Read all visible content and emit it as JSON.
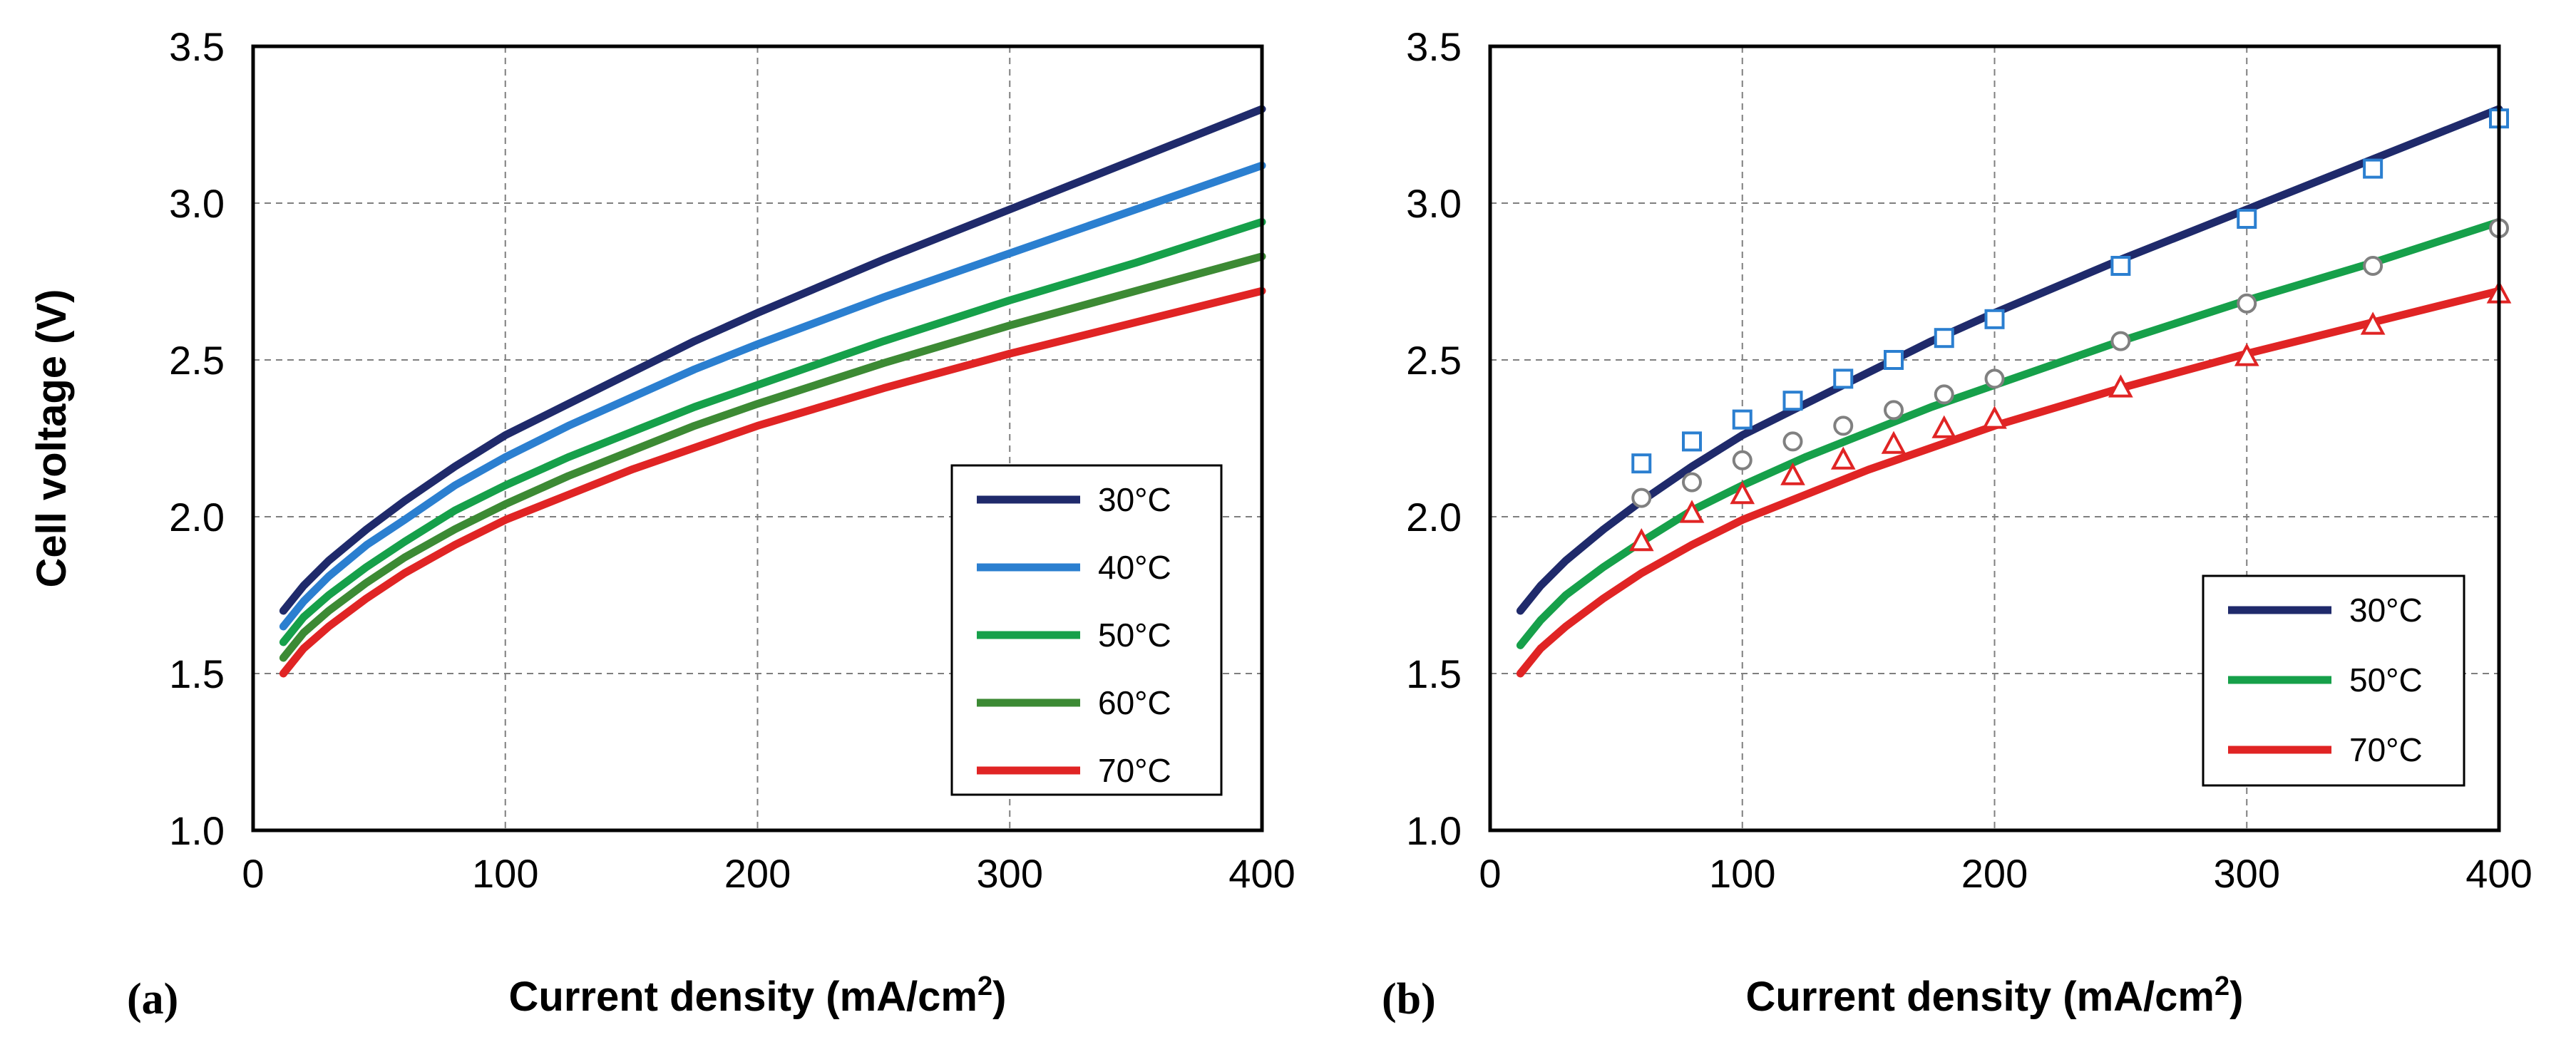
{
  "chart_data": [
    {
      "panel_label": "(a)",
      "type": "line",
      "xlabel": "Current density (mA/cm",
      "xlabel_sup": "2",
      "xlabel_tail": ")",
      "ylabel": "Cell voltage (V)",
      "xlim": [
        0,
        400
      ],
      "ylim": [
        1.0,
        3.5
      ],
      "xticks": [
        "0",
        "100",
        "200",
        "300",
        "400"
      ],
      "yticks": [
        "1.0",
        "1.5",
        "2.0",
        "2.5",
        "3.0",
        "3.5"
      ],
      "grid": true,
      "legend_position": "bottom-right",
      "series": [
        {
          "name": "30°C",
          "color": "#1f2a6b",
          "x": [
            12,
            20,
            30,
            45,
            60,
            80,
            100,
            125,
            150,
            175,
            200,
            250,
            300,
            350,
            400
          ],
          "y": [
            1.7,
            1.78,
            1.86,
            1.96,
            2.05,
            2.16,
            2.26,
            2.36,
            2.46,
            2.56,
            2.65,
            2.82,
            2.98,
            3.14,
            3.3
          ]
        },
        {
          "name": "40°C",
          "color": "#2b7fd0",
          "x": [
            12,
            20,
            30,
            45,
            60,
            80,
            100,
            125,
            150,
            175,
            200,
            250,
            300,
            350,
            400
          ],
          "y": [
            1.65,
            1.73,
            1.81,
            1.91,
            1.99,
            2.1,
            2.19,
            2.29,
            2.38,
            2.47,
            2.55,
            2.7,
            2.84,
            2.98,
            3.12
          ]
        },
        {
          "name": "50°C",
          "color": "#16a04a",
          "x": [
            12,
            20,
            30,
            45,
            60,
            80,
            100,
            125,
            150,
            175,
            200,
            250,
            300,
            350,
            400
          ],
          "y": [
            1.6,
            1.68,
            1.75,
            1.84,
            1.92,
            2.02,
            2.1,
            2.19,
            2.27,
            2.35,
            2.42,
            2.56,
            2.69,
            2.81,
            2.94
          ]
        },
        {
          "name": "60°C",
          "color": "#3c8a34",
          "x": [
            12,
            20,
            30,
            45,
            60,
            80,
            100,
            125,
            150,
            175,
            200,
            250,
            300,
            350,
            400
          ],
          "y": [
            1.55,
            1.63,
            1.7,
            1.79,
            1.87,
            1.96,
            2.04,
            2.13,
            2.21,
            2.29,
            2.36,
            2.49,
            2.61,
            2.72,
            2.83
          ]
        },
        {
          "name": "70°C",
          "color": "#e02424",
          "x": [
            12,
            20,
            30,
            45,
            60,
            80,
            100,
            125,
            150,
            175,
            200,
            250,
            300,
            350,
            400
          ],
          "y": [
            1.5,
            1.58,
            1.65,
            1.74,
            1.82,
            1.91,
            1.99,
            2.07,
            2.15,
            2.22,
            2.29,
            2.41,
            2.52,
            2.62,
            2.72
          ]
        }
      ]
    },
    {
      "panel_label": "(b)",
      "type": "line",
      "xlabel": "Current density (mA/cm",
      "xlabel_sup": "2",
      "xlabel_tail": ")",
      "ylabel": "",
      "xlim": [
        0,
        400
      ],
      "ylim": [
        1.0,
        3.5
      ],
      "xticks": [
        "0",
        "100",
        "200",
        "300",
        "400"
      ],
      "yticks": [
        "1.0",
        "1.5",
        "2.0",
        "2.5",
        "3.0",
        "3.5"
      ],
      "grid": true,
      "legend_position": "bottom-right",
      "series": [
        {
          "name": "30°C",
          "color": "#1f2a6b",
          "x": [
            12,
            20,
            30,
            45,
            60,
            80,
            100,
            125,
            150,
            175,
            200,
            250,
            300,
            350,
            400
          ],
          "y": [
            1.7,
            1.78,
            1.86,
            1.96,
            2.05,
            2.16,
            2.26,
            2.36,
            2.46,
            2.56,
            2.65,
            2.82,
            2.98,
            3.14,
            3.3
          ]
        },
        {
          "name": "50°C",
          "color": "#16a04a",
          "x": [
            12,
            20,
            30,
            45,
            60,
            80,
            100,
            125,
            150,
            175,
            200,
            250,
            300,
            350,
            400
          ],
          "y": [
            1.59,
            1.67,
            1.75,
            1.84,
            1.92,
            2.02,
            2.1,
            2.19,
            2.27,
            2.35,
            2.42,
            2.56,
            2.69,
            2.81,
            2.94
          ]
        },
        {
          "name": "70°C",
          "color": "#e02424",
          "x": [
            12,
            20,
            30,
            45,
            60,
            80,
            100,
            125,
            150,
            175,
            200,
            250,
            300,
            350,
            400
          ],
          "y": [
            1.5,
            1.58,
            1.65,
            1.74,
            1.82,
            1.91,
            1.99,
            2.07,
            2.15,
            2.22,
            2.29,
            2.41,
            2.52,
            2.62,
            2.72
          ]
        }
      ],
      "markers": [
        {
          "shape": "square",
          "color": "#2b7fd0",
          "x": [
            60,
            80,
            100,
            120,
            140,
            160,
            180,
            200,
            250,
            300,
            350,
            400
          ],
          "y": [
            2.17,
            2.24,
            2.31,
            2.37,
            2.44,
            2.5,
            2.57,
            2.63,
            2.8,
            2.95,
            3.11,
            3.27
          ]
        },
        {
          "shape": "circle",
          "color": "#808080",
          "x": [
            60,
            80,
            100,
            120,
            140,
            160,
            180,
            200,
            250,
            300,
            350,
            400
          ],
          "y": [
            2.06,
            2.11,
            2.18,
            2.24,
            2.29,
            2.34,
            2.39,
            2.44,
            2.56,
            2.68,
            2.8,
            2.92
          ]
        },
        {
          "shape": "triangle",
          "color": "#e02424",
          "x": [
            60,
            80,
            100,
            120,
            140,
            160,
            180,
            200,
            250,
            300,
            350,
            400
          ],
          "y": [
            1.92,
            2.01,
            2.07,
            2.13,
            2.18,
            2.23,
            2.28,
            2.31,
            2.41,
            2.51,
            2.61,
            2.71
          ]
        }
      ]
    }
  ]
}
